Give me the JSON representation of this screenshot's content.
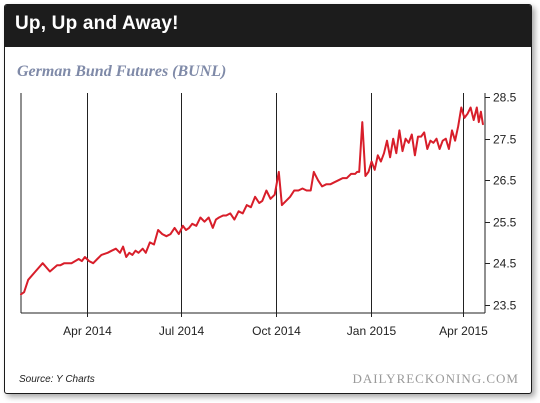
{
  "header": {
    "title": "Up, Up and Away!"
  },
  "footer": {
    "source": "Source: Y Charts",
    "brand": "DAILYRECKONING.COM"
  },
  "colors": {
    "header_bg": "#1c1c1c",
    "subtitle": "#7f8aa8",
    "line": "#d81e2a",
    "grid": "#222222"
  },
  "chart_data": {
    "type": "line",
    "title": "German Bund Futures (BUNL)",
    "xlabel": "",
    "ylabel": "",
    "ylim": [
      23.3,
      28.6
    ],
    "yticks": [
      23.5,
      24.5,
      25.5,
      26.5,
      27.5,
      28.5
    ],
    "ytick_labels": [
      "23.5",
      "24.5",
      "25.5",
      "26.5",
      "27.5",
      "28.5"
    ],
    "xlim": [
      "2014-01-27",
      "2015-04-22"
    ],
    "xticks": [
      "2014-04-01",
      "2014-07-01",
      "2014-10-01",
      "2015-01-01",
      "2015-04-01"
    ],
    "xtick_labels": [
      "Apr 2014",
      "Jul 2014",
      "Oct 2014",
      "Jan 2015",
      "Apr 2015"
    ],
    "grid": "vertical",
    "y_axis_side": "right",
    "series": [
      {
        "x": [
          "2014-01-27",
          "2014-01-30",
          "2014-02-03",
          "2014-02-10",
          "2014-02-17",
          "2014-02-24",
          "2014-03-03",
          "2014-03-06",
          "2014-03-10",
          "2014-03-17",
          "2014-03-24",
          "2014-03-27",
          "2014-03-30",
          "2014-04-03",
          "2014-04-07",
          "2014-04-11",
          "2014-04-15",
          "2014-04-21",
          "2014-04-25",
          "2014-04-29",
          "2014-05-03",
          "2014-05-06",
          "2014-05-09",
          "2014-05-12",
          "2014-05-15",
          "2014-05-18",
          "2014-05-21",
          "2014-05-25",
          "2014-05-28",
          "2014-06-01",
          "2014-06-05",
          "2014-06-09",
          "2014-06-13",
          "2014-06-17",
          "2014-06-21",
          "2014-06-25",
          "2014-06-29",
          "2014-07-03",
          "2014-07-06",
          "2014-07-09",
          "2014-07-12",
          "2014-07-16",
          "2014-07-20",
          "2014-07-24",
          "2014-07-28",
          "2014-08-01",
          "2014-08-04",
          "2014-08-07",
          "2014-08-11",
          "2014-08-14",
          "2014-08-18",
          "2014-08-22",
          "2014-08-26",
          "2014-08-30",
          "2014-09-03",
          "2014-09-07",
          "2014-09-11",
          "2014-09-15",
          "2014-09-18",
          "2014-09-22",
          "2014-09-26",
          "2014-09-30",
          "2014-10-04",
          "2014-10-07",
          "2014-10-11",
          "2014-10-15",
          "2014-10-19",
          "2014-10-23",
          "2014-10-27",
          "2014-10-31",
          "2014-11-04",
          "2014-11-07",
          "2014-11-11",
          "2014-11-15",
          "2014-11-19",
          "2014-11-23",
          "2014-11-27",
          "2014-12-01",
          "2014-12-05",
          "2014-12-09",
          "2014-12-13",
          "2014-12-17",
          "2014-12-19",
          "2014-12-21",
          "2014-12-24",
          "2014-12-27",
          "2014-12-30",
          "2015-01-02",
          "2015-01-05",
          "2015-01-08",
          "2015-01-11",
          "2015-01-14",
          "2015-01-17",
          "2015-01-20",
          "2015-01-23",
          "2015-01-26",
          "2015-01-29",
          "2015-02-01",
          "2015-02-04",
          "2015-02-07",
          "2015-02-10",
          "2015-02-13",
          "2015-02-16",
          "2015-02-19",
          "2015-02-22",
          "2015-02-25",
          "2015-02-28",
          "2015-03-03",
          "2015-03-06",
          "2015-03-09",
          "2015-03-12",
          "2015-03-15",
          "2015-03-18",
          "2015-03-21",
          "2015-03-24",
          "2015-03-27",
          "2015-03-30",
          "2015-04-02",
          "2015-04-05",
          "2015-04-08",
          "2015-04-11",
          "2015-04-14",
          "2015-04-16",
          "2015-04-18",
          "2015-04-20"
        ],
        "y": [
          23.75,
          23.8,
          24.1,
          24.3,
          24.5,
          24.3,
          24.45,
          24.45,
          24.5,
          24.5,
          24.6,
          24.55,
          24.65,
          24.55,
          24.5,
          24.6,
          24.7,
          24.75,
          24.8,
          24.85,
          24.75,
          24.9,
          24.65,
          24.75,
          24.7,
          24.8,
          24.75,
          24.85,
          24.75,
          25.0,
          24.95,
          25.3,
          25.2,
          25.15,
          25.2,
          25.35,
          25.2,
          25.4,
          25.3,
          25.35,
          25.45,
          25.4,
          25.6,
          25.5,
          25.6,
          25.35,
          25.55,
          25.6,
          25.65,
          25.65,
          25.7,
          25.55,
          25.75,
          25.7,
          25.9,
          25.85,
          26.1,
          25.95,
          26.0,
          26.25,
          26.05,
          26.15,
          26.7,
          25.9,
          26.0,
          26.1,
          26.25,
          26.25,
          26.3,
          26.25,
          26.25,
          26.7,
          26.5,
          26.35,
          26.4,
          26.4,
          26.45,
          26.5,
          26.55,
          26.55,
          26.65,
          26.65,
          26.7,
          26.7,
          27.9,
          26.6,
          26.7,
          26.95,
          26.75,
          27.1,
          26.95,
          27.15,
          27.45,
          27.05,
          27.5,
          27.15,
          27.7,
          27.2,
          27.5,
          27.4,
          27.6,
          27.1,
          27.55,
          27.55,
          27.65,
          27.25,
          27.45,
          27.4,
          27.5,
          27.25,
          27.45,
          27.5,
          27.25,
          27.7,
          27.45,
          27.8,
          28.25,
          28.0,
          28.1,
          28.25,
          27.95,
          28.25,
          27.9,
          28.15,
          27.85
        ]
      }
    ]
  }
}
